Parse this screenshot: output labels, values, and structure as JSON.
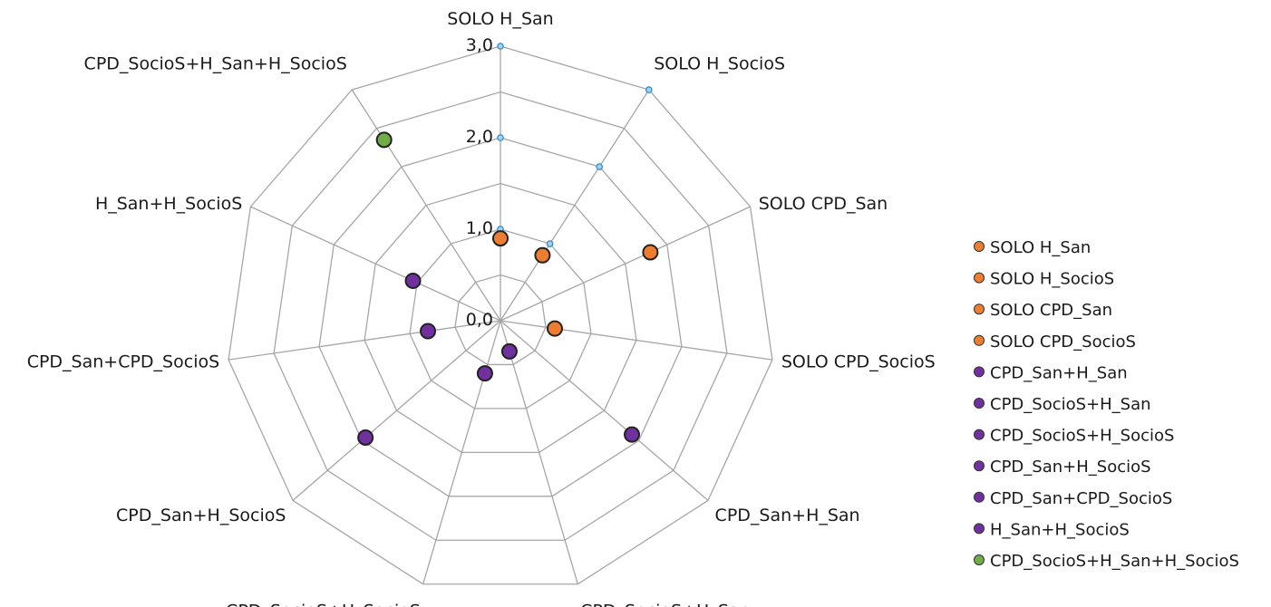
{
  "chart_data": {
    "type": "radar",
    "axes": [
      "SOLO H_San",
      "SOLO H_SocioS",
      "SOLO CPD_San",
      "SOLO CPD_SocioS",
      "CPD_San+H_San",
      "CPD_SocioS+H_San",
      "CPD_SocioS+H_SocioS",
      "CPD_San+H_SocioS",
      "CPD_San+CPD_SocioS",
      "H_San+H_SocioS",
      "CPD_SocioS+H_San+H_SocioS"
    ],
    "tick_labels": [
      "0,0",
      "1,0",
      "2,0",
      "3,0"
    ],
    "range": [
      0,
      3
    ],
    "grid_levels": [
      0.5,
      1.0,
      1.5,
      2.0,
      2.5,
      3.0
    ],
    "grid": true,
    "legend_position": "right",
    "colors": {
      "orange": "#ed7d31",
      "purple": "#7030a0",
      "green": "#70ad47"
    },
    "series": [
      {
        "name": "SOLO H_San",
        "axis": 0,
        "value": 0.9,
        "color": "#ed7d31"
      },
      {
        "name": "SOLO H_SocioS",
        "axis": 1,
        "value": 0.85,
        "color": "#ed7d31"
      },
      {
        "name": "SOLO CPD_San",
        "axis": 2,
        "value": 1.8,
        "color": "#ed7d31"
      },
      {
        "name": "SOLO CPD_SocioS",
        "axis": 3,
        "value": 0.6,
        "color": "#ed7d31"
      },
      {
        "name": "CPD_San+H_San",
        "axis": 4,
        "value": 1.9,
        "color": "#7030a0"
      },
      {
        "name": "CPD_SocioS+H_San",
        "axis": 5,
        "value": 0.35,
        "color": "#7030a0"
      },
      {
        "name": "CPD_SocioS+H_SocioS",
        "axis": 6,
        "value": 0.6,
        "color": "#7030a0"
      },
      {
        "name": "CPD_San+H_SocioS",
        "axis": 7,
        "value": 1.95,
        "color": "#7030a0"
      },
      {
        "name": "CPD_San+CPD_SocioS",
        "axis": 8,
        "value": 0.8,
        "color": "#7030a0"
      },
      {
        "name": "H_San+H_SocioS",
        "axis": 9,
        "value": 1.05,
        "color": "#7030a0"
      },
      {
        "name": "CPD_SocioS+H_San+H_SocioS",
        "axis": 10,
        "value": 2.35,
        "color": "#70ad47"
      }
    ]
  }
}
